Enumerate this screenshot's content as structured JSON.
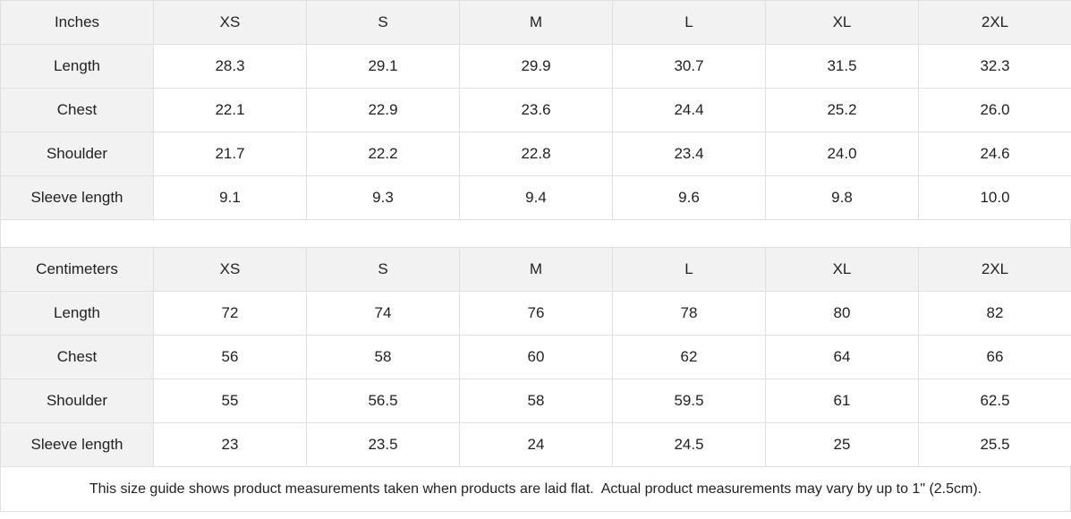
{
  "tables": [
    {
      "header": [
        "Inches",
        "XS",
        "S",
        "M",
        "L",
        "XL",
        "2XL"
      ],
      "rows": [
        [
          "Length",
          "28.3",
          "29.1",
          "29.9",
          "30.7",
          "31.5",
          "32.3"
        ],
        [
          "Chest",
          "22.1",
          "22.9",
          "23.6",
          "24.4",
          "25.2",
          "26.0"
        ],
        [
          "Shoulder",
          "21.7",
          "22.2",
          "22.8",
          "23.4",
          "24.0",
          "24.6"
        ],
        [
          "Sleeve length",
          "9.1",
          "9.3",
          "9.4",
          "9.6",
          "9.8",
          "10.0"
        ]
      ]
    },
    {
      "header": [
        "Centimeters",
        "XS",
        "S",
        "M",
        "L",
        "XL",
        "2XL"
      ],
      "rows": [
        [
          "Length",
          "72",
          "74",
          "76",
          "78",
          "80",
          "82"
        ],
        [
          "Chest",
          "56",
          "58",
          "60",
          "62",
          "64",
          "66"
        ],
        [
          "Shoulder",
          "55",
          "56.5",
          "58",
          "59.5",
          "61",
          "62.5"
        ],
        [
          "Sleeve length",
          "23",
          "23.5",
          "24",
          "24.5",
          "25",
          "25.5"
        ]
      ]
    }
  ],
  "footer": "This size guide shows product measurements taken when products are laid flat.  Actual product measurements may vary by up to 1\" (2.5cm)."
}
